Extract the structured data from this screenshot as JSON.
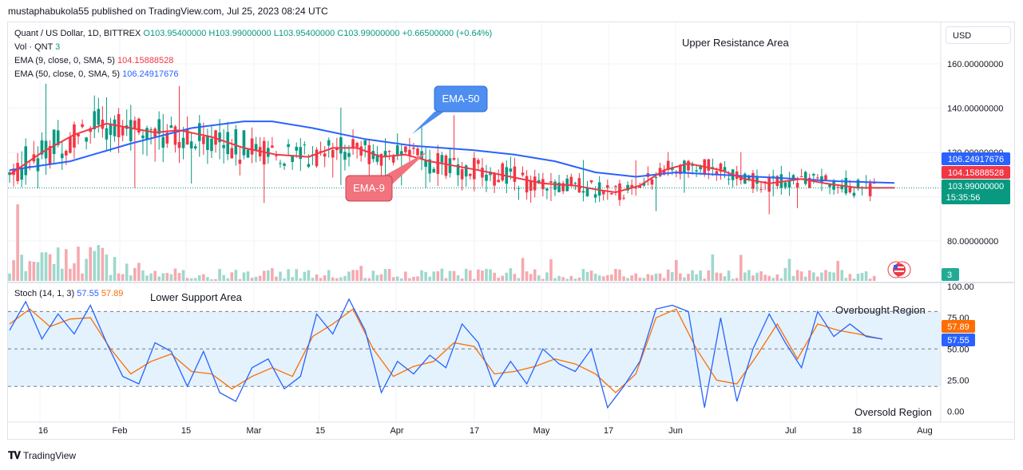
{
  "header": {
    "published": "mustaphabukola55 published on TradingView.com, Jul 25, 2023 08:24 UTC"
  },
  "legend": {
    "symbol": "Quant / US Dollar, 1D, BITTREX",
    "ohlc": "O103.95400000 H103.99000000 L103.95400000 C103.99000000 +0.66500000 (+0.64%)",
    "vol_label": "Vol · QNT",
    "vol_value": "3",
    "ema9_label": "EMA (9, close, 0, SMA, 5)",
    "ema9_value": "104.15888528",
    "ema50_label": "EMA (50, close, 0, SMA, 5)",
    "ema50_value": "106.24917676",
    "stoch_label": "Stoch (14, 1, 3)",
    "stoch_k": "57.55",
    "stoch_d": "57.89"
  },
  "currency": "USD",
  "annotations": {
    "upper_resistance": "Upper Resistance Area",
    "lower_support": "Lower Support Area",
    "ema50_callout": "EMA-50",
    "ema9_callout": "EMA-9",
    "overbought": "Overbought Region",
    "oversold": "Oversold Region"
  },
  "price_tags": {
    "ema50": "106.24917676",
    "ema9": "104.15888528",
    "last": "103.99000000",
    "countdown": "15:35:56",
    "volume": "3",
    "stoch_d": "57.89",
    "stoch_k": "57.55"
  },
  "colors": {
    "up": "#089981",
    "down": "#f23645",
    "ema9": "#f23645",
    "ema50": "#2962ff",
    "stoch_k": "#2962ff",
    "stoch_d": "#ff6d00",
    "band": "#e3f2fd"
  },
  "footer": {
    "brand": "TradingView"
  },
  "chart_data": [
    {
      "type": "candlestick",
      "title": "Quant / US Dollar, 1D, BITTREX",
      "x_ticks": [
        "16",
        "Feb",
        "15",
        "Mar",
        "15",
        "Apr",
        "17",
        "May",
        "17",
        "Jun",
        "Jul",
        "18",
        "Aug"
      ],
      "y_ticks": [
        "160.00000000",
        "140.00000000",
        "120.00000000",
        "80.00000000"
      ],
      "ylim": [
        62,
        178
      ],
      "ema9_points": [
        [
          0,
          110
        ],
        [
          8,
          120
        ],
        [
          16,
          128
        ],
        [
          24,
          133
        ],
        [
          30,
          131
        ],
        [
          36,
          129
        ],
        [
          42,
          130
        ],
        [
          50,
          127
        ],
        [
          58,
          122
        ],
        [
          66,
          119
        ],
        [
          74,
          118
        ],
        [
          80,
          122
        ],
        [
          86,
          122
        ],
        [
          92,
          118
        ],
        [
          98,
          119
        ],
        [
          104,
          116
        ],
        [
          110,
          114
        ],
        [
          116,
          112
        ],
        [
          124,
          109
        ],
        [
          132,
          106
        ],
        [
          140,
          105
        ],
        [
          146,
          103
        ],
        [
          150,
          102
        ],
        [
          156,
          105
        ],
        [
          162,
          112
        ],
        [
          168,
          115
        ],
        [
          176,
          112
        ],
        [
          182,
          108
        ],
        [
          188,
          106
        ],
        [
          196,
          108
        ],
        [
          202,
          106
        ],
        [
          210,
          104
        ],
        [
          219,
          104
        ]
      ],
      "ema50_points": [
        [
          0,
          112
        ],
        [
          15,
          116
        ],
        [
          30,
          124
        ],
        [
          45,
          131
        ],
        [
          58,
          134
        ],
        [
          65,
          134
        ],
        [
          75,
          131
        ],
        [
          88,
          126
        ],
        [
          100,
          123
        ],
        [
          115,
          121
        ],
        [
          125,
          119
        ],
        [
          135,
          116
        ],
        [
          145,
          111
        ],
        [
          155,
          109
        ],
        [
          165,
          111
        ],
        [
          175,
          110
        ],
        [
          185,
          109
        ],
        [
          195,
          108
        ],
        [
          205,
          107
        ],
        [
          219,
          106.2
        ]
      ],
      "last_price": 103.99,
      "ema9_last": 104.15888528,
      "ema50_last": 106.24917676,
      "volume_last": 3
    },
    {
      "type": "line",
      "title": "Stoch (14, 1, 3)",
      "y_ticks": [
        "100.00",
        "75.00",
        "50.00",
        "25.00",
        "0.00"
      ],
      "ylim": [
        -8,
        102
      ],
      "bands": [
        20,
        80
      ],
      "series": [
        {
          "name": "%K",
          "last": 57.55,
          "points": [
            [
              0,
              65
            ],
            [
              4,
              88
            ],
            [
              8,
              58
            ],
            [
              12,
              78
            ],
            [
              16,
              62
            ],
            [
              20,
              85
            ],
            [
              24,
              55
            ],
            [
              28,
              28
            ],
            [
              32,
              22
            ],
            [
              36,
              55
            ],
            [
              40,
              48
            ],
            [
              44,
              20
            ],
            [
              48,
              48
            ],
            [
              52,
              15
            ],
            [
              56,
              8
            ],
            [
              60,
              35
            ],
            [
              64,
              42
            ],
            [
              68,
              18
            ],
            [
              72,
              28
            ],
            [
              76,
              78
            ],
            [
              80,
              62
            ],
            [
              84,
              90
            ],
            [
              88,
              65
            ],
            [
              92,
              15
            ],
            [
              96,
              40
            ],
            [
              100,
              30
            ],
            [
              104,
              45
            ],
            [
              108,
              35
            ],
            [
              112,
              70
            ],
            [
              116,
              55
            ],
            [
              120,
              20
            ],
            [
              124,
              40
            ],
            [
              128,
              22
            ],
            [
              132,
              50
            ],
            [
              136,
              38
            ],
            [
              140,
              32
            ],
            [
              144,
              50
            ],
            [
              148,
              3
            ],
            [
              152,
              20
            ],
            [
              156,
              40
            ],
            [
              160,
              82
            ],
            [
              164,
              85
            ],
            [
              168,
              80
            ],
            [
              172,
              3
            ],
            [
              176,
              75
            ],
            [
              180,
              8
            ],
            [
              184,
              50
            ],
            [
              188,
              78
            ],
            [
              192,
              55
            ],
            [
              196,
              35
            ],
            [
              200,
              80
            ],
            [
              204,
              60
            ],
            [
              208,
              70
            ],
            [
              212,
              60
            ],
            [
              216,
              58
            ]
          ]
        },
        {
          "name": "%D",
          "last": 57.89,
          "points": [
            [
              0,
              70
            ],
            [
              5,
              82
            ],
            [
              10,
              68
            ],
            [
              15,
              74
            ],
            [
              20,
              75
            ],
            [
              25,
              50
            ],
            [
              30,
              30
            ],
            [
              35,
              40
            ],
            [
              40,
              46
            ],
            [
              45,
              32
            ],
            [
              50,
              30
            ],
            [
              55,
              18
            ],
            [
              60,
              28
            ],
            [
              65,
              35
            ],
            [
              70,
              28
            ],
            [
              75,
              60
            ],
            [
              80,
              70
            ],
            [
              85,
              82
            ],
            [
              90,
              50
            ],
            [
              95,
              28
            ],
            [
              100,
              36
            ],
            [
              105,
              40
            ],
            [
              110,
              55
            ],
            [
              115,
              52
            ],
            [
              120,
              30
            ],
            [
              125,
              32
            ],
            [
              130,
              36
            ],
            [
              135,
              42
            ],
            [
              140,
              38
            ],
            [
              145,
              30
            ],
            [
              150,
              15
            ],
            [
              155,
              30
            ],
            [
              160,
              75
            ],
            [
              165,
              82
            ],
            [
              170,
              50
            ],
            [
              175,
              25
            ],
            [
              180,
              22
            ],
            [
              185,
              45
            ],
            [
              190,
              70
            ],
            [
              195,
              42
            ],
            [
              200,
              70
            ],
            [
              205,
              65
            ],
            [
              210,
              62
            ],
            [
              216,
              57.9
            ]
          ]
        }
      ]
    }
  ]
}
